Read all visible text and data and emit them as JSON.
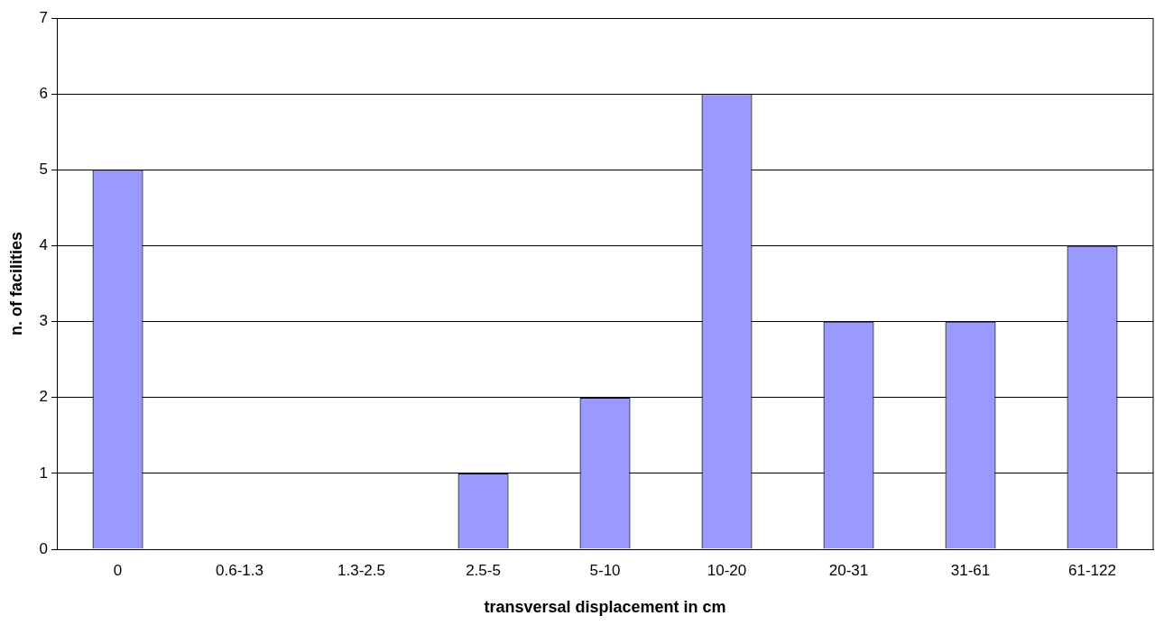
{
  "chart_data": {
    "type": "bar",
    "xlabel": "transversal displacement in cm",
    "ylabel": "n. of facilities",
    "categories": [
      "0",
      "0.6-1.3",
      "1.3-2.5",
      "2.5-5",
      "5-10",
      "10-20",
      "20-31",
      "31-61",
      "61-122"
    ],
    "values": [
      5,
      0,
      0,
      1,
      2,
      6,
      3,
      3,
      4
    ],
    "color": "#9999ff",
    "ylim": [
      0,
      7
    ],
    "yticks": [
      0,
      1,
      2,
      3,
      4,
      5,
      6,
      7
    ],
    "grid": "y",
    "legend": false
  }
}
